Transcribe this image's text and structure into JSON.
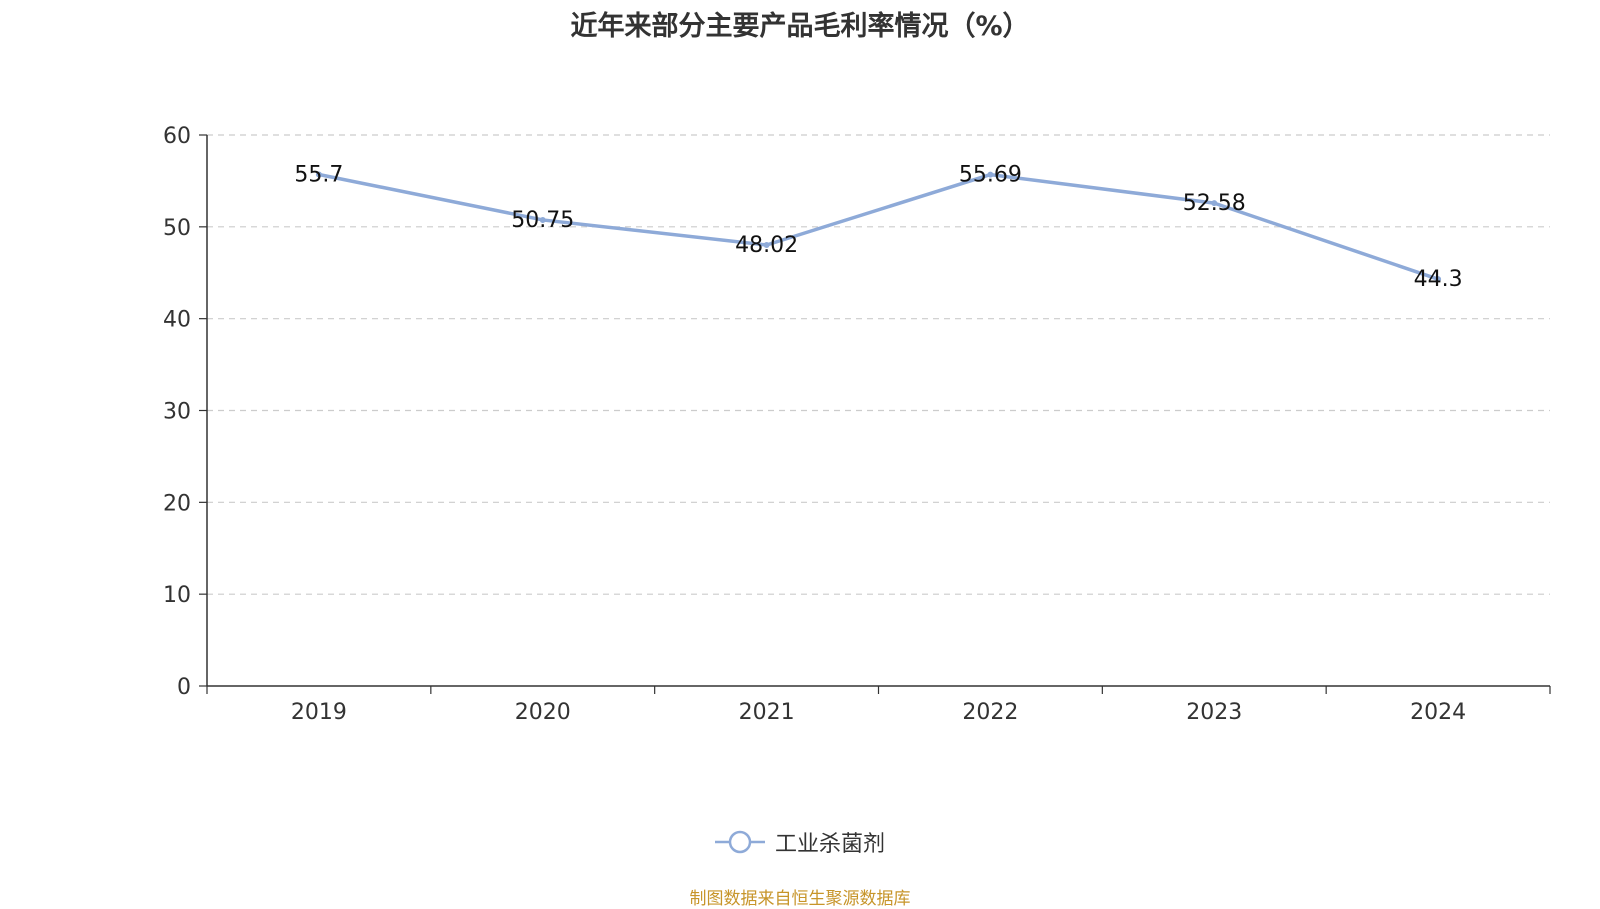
{
  "chart_data": {
    "type": "line",
    "title": "近年来部分主要产品毛利率情况（%）",
    "categories": [
      "2019",
      "2020",
      "2021",
      "2022",
      "2023",
      "2024"
    ],
    "series": [
      {
        "name": "工业杀菌剂",
        "values": [
          55.7,
          50.75,
          48.02,
          55.69,
          52.58,
          44.3
        ],
        "labels": [
          "55.7",
          "50.75",
          "48.02",
          "55.69",
          "52.58",
          "44.3"
        ],
        "color": "#8eaad8"
      }
    ],
    "ylim": [
      0,
      60
    ],
    "yticks": [
      0,
      10,
      20,
      30,
      40,
      50,
      60
    ],
    "grid": true,
    "legend_position": "bottom-center"
  },
  "footer": {
    "source": "制图数据来自恒生聚源数据库"
  },
  "colors": {
    "axis": "#333333",
    "grid": "#cccccc",
    "source": "#c7952a"
  }
}
